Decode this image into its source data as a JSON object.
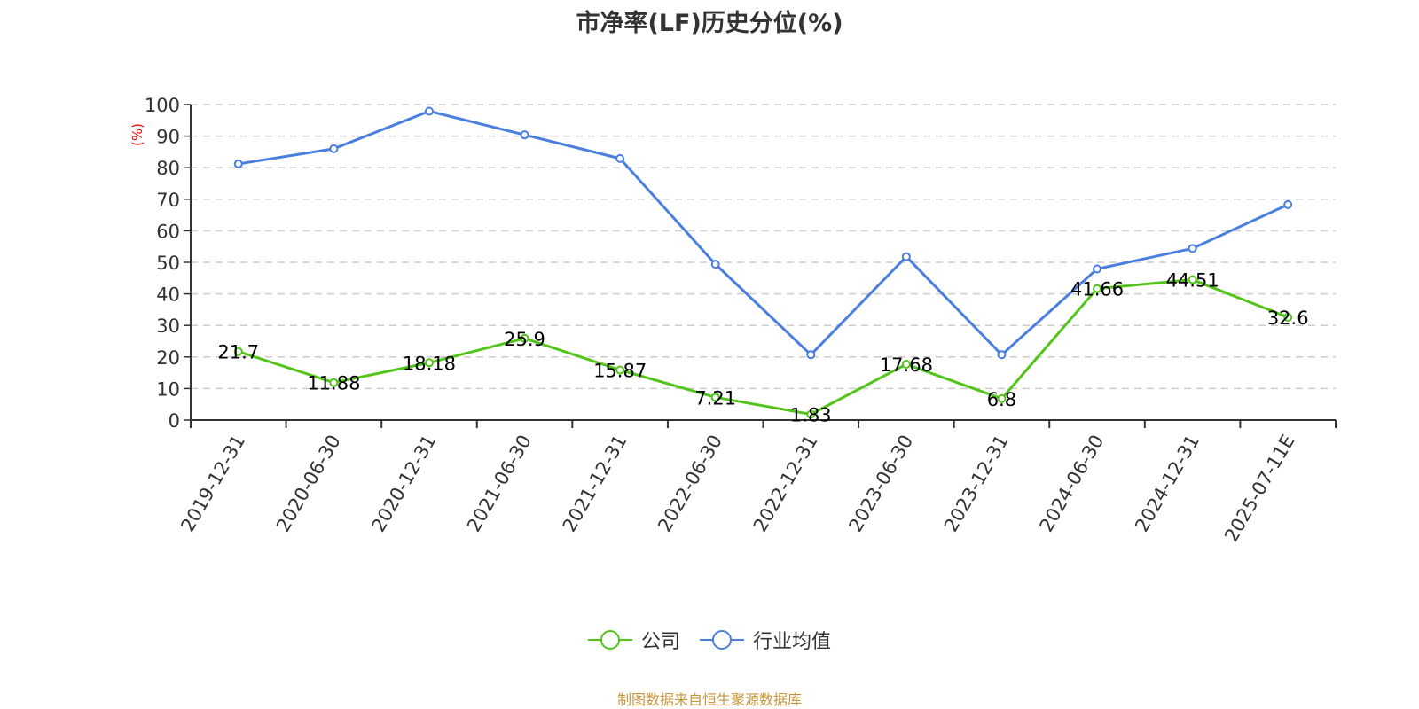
{
  "title": "市净率(LF)历史分位(%)",
  "y_axis_unit_label": "(%)",
  "legend": [
    {
      "label": "公司",
      "color": "#52c41a"
    },
    {
      "label": "行业均值",
      "color": "#4a7fe0"
    }
  ],
  "source_note": "制图数据来自恒生聚源数据库",
  "colors": {
    "company": "#52c41a",
    "industry": "#4a7fe0",
    "axis": "#333333",
    "grid": "#cccccc",
    "unit_label": "#ff0000",
    "source": "#c8963a"
  },
  "chart_data": {
    "type": "line",
    "title": "市净率(LF)历史分位(%)",
    "xlabel": "",
    "ylabel": "(%)",
    "ylim": [
      0,
      100
    ],
    "yticks": [
      0,
      10,
      20,
      30,
      40,
      50,
      60,
      70,
      80,
      90,
      100
    ],
    "grid": true,
    "legend_position": "bottom",
    "categories": [
      "2019-12-31",
      "2020-06-30",
      "2020-12-31",
      "2021-06-30",
      "2021-12-31",
      "2022-06-30",
      "2022-12-31",
      "2023-06-30",
      "2023-12-31",
      "2024-06-30",
      "2024-12-31",
      "2025-07-11E"
    ],
    "series": [
      {
        "name": "公司",
        "values": [
          21.7,
          11.88,
          18.18,
          25.9,
          15.87,
          7.21,
          1.83,
          17.68,
          6.8,
          41.66,
          44.51,
          32.6
        ],
        "labels_shown": true
      },
      {
        "name": "行业均值",
        "values": [
          81.2,
          86.0,
          97.9,
          90.4,
          82.9,
          49.4,
          20.7,
          51.8,
          20.7,
          47.9,
          54.4,
          68.3
        ],
        "labels_shown": false
      }
    ]
  }
}
